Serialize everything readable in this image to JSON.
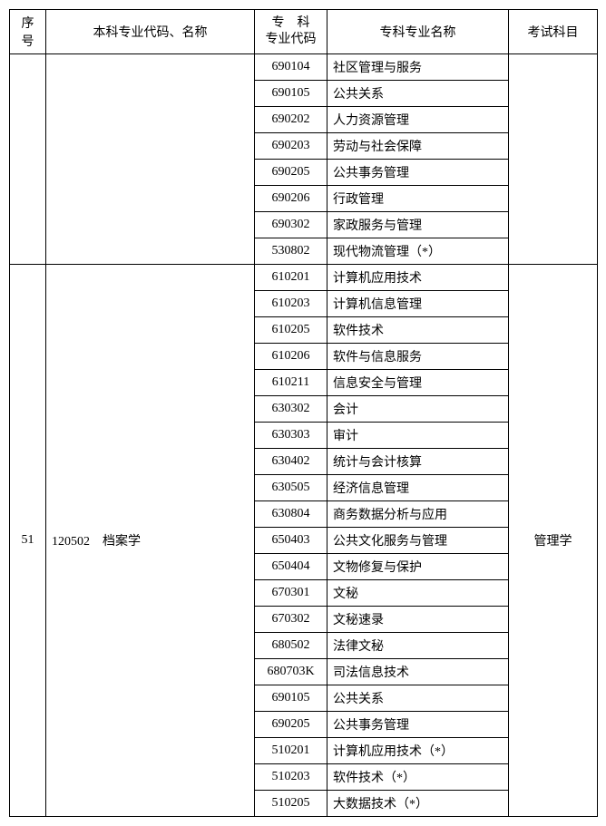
{
  "headers": {
    "seq": "序号",
    "major": "本科专业代码、名称",
    "code_line1": "专　科",
    "code_line2": "专业代码",
    "name": "专科专业名称",
    "exam": "考试科目"
  },
  "group1": {
    "seq": "",
    "major": "",
    "exam": "",
    "rows": [
      {
        "code": "690104",
        "name": "社区管理与服务"
      },
      {
        "code": "690105",
        "name": "公共关系"
      },
      {
        "code": "690202",
        "name": "人力资源管理"
      },
      {
        "code": "690203",
        "name": "劳动与社会保障"
      },
      {
        "code": "690205",
        "name": "公共事务管理"
      },
      {
        "code": "690206",
        "name": "行政管理"
      },
      {
        "code": "690302",
        "name": "家政服务与管理"
      },
      {
        "code": "530802",
        "name": "现代物流管理（*）"
      }
    ]
  },
  "group2": {
    "seq": "51",
    "major": "120502　档案学",
    "exam": "管理学",
    "rows": [
      {
        "code": "610201",
        "name": "计算机应用技术"
      },
      {
        "code": "610203",
        "name": "计算机信息管理"
      },
      {
        "code": "610205",
        "name": "软件技术"
      },
      {
        "code": "610206",
        "name": "软件与信息服务"
      },
      {
        "code": "610211",
        "name": "信息安全与管理"
      },
      {
        "code": "630302",
        "name": "会计"
      },
      {
        "code": "630303",
        "name": "审计"
      },
      {
        "code": "630402",
        "name": "统计与会计核算"
      },
      {
        "code": "630505",
        "name": "经济信息管理"
      },
      {
        "code": "630804",
        "name": "商务数据分析与应用"
      },
      {
        "code": "650403",
        "name": "公共文化服务与管理"
      },
      {
        "code": "650404",
        "name": "文物修复与保护"
      },
      {
        "code": "670301",
        "name": "文秘"
      },
      {
        "code": "670302",
        "name": "文秘速录"
      },
      {
        "code": "680502",
        "name": "法律文秘"
      },
      {
        "code": "680703K",
        "name": "司法信息技术"
      },
      {
        "code": "690105",
        "name": "公共关系"
      },
      {
        "code": "690205",
        "name": "公共事务管理"
      },
      {
        "code": "510201",
        "name": "计算机应用技术（*）"
      },
      {
        "code": "510203",
        "name": "软件技术（*）"
      },
      {
        "code": "510205",
        "name": "大数据技术（*）"
      }
    ]
  }
}
